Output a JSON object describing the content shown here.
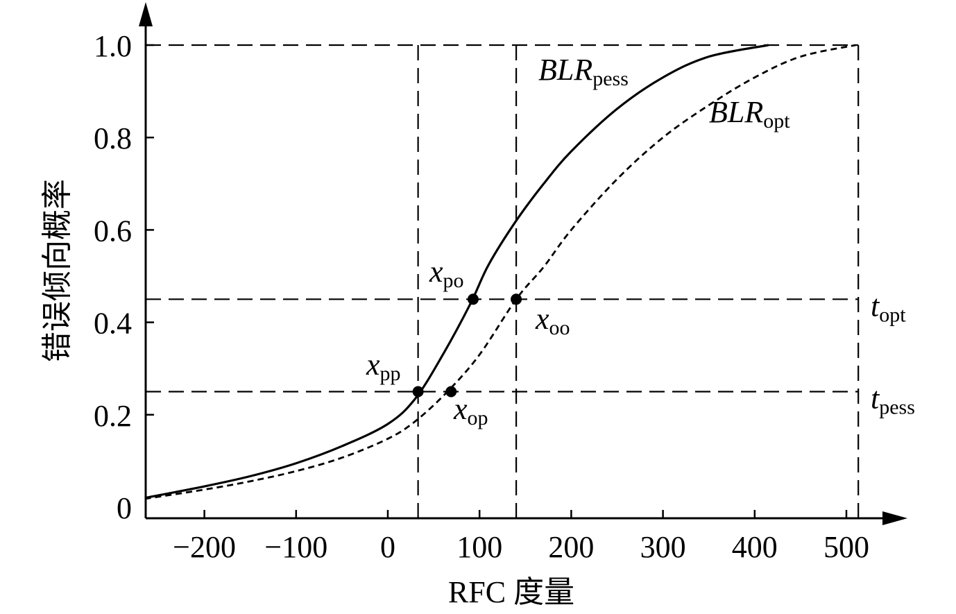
{
  "chart_data": {
    "type": "line",
    "xlabel": "RFC 度量",
    "ylabel": "错误倾向概率",
    "xlim": [
      -265,
      515
    ],
    "ylim": [
      0,
      1.0
    ],
    "x_ticks": [
      -200,
      -100,
      0,
      100,
      200,
      300,
      400,
      500
    ],
    "x_tick_labels": [
      "−200",
      "−100",
      "0",
      "100",
      "200",
      "300",
      "400",
      "500"
    ],
    "y_ticks": [
      0,
      0.2,
      0.4,
      0.6,
      0.8,
      1.0
    ],
    "y_tick_labels": [
      "0",
      "0.2",
      "0.4",
      "0.6",
      "0.8",
      "1.0"
    ],
    "grid": false,
    "series": [
      {
        "name": "BLR",
        "name_sub": "pess",
        "style": "solid",
        "color": "#000000",
        "x": [
          -265,
          -200,
          -150,
          -100,
          -50,
          0,
          30,
          60,
          90,
          110,
          140,
          170,
          200,
          250,
          300,
          350,
          415
        ],
        "y": [
          0.02,
          0.045,
          0.067,
          0.095,
          0.132,
          0.18,
          0.235,
          0.33,
          0.44,
          0.525,
          0.62,
          0.7,
          0.77,
          0.862,
          0.93,
          0.975,
          1.0
        ]
      },
      {
        "name": "BLR",
        "name_sub": "opt",
        "style": "dashed",
        "color": "#000000",
        "x": [
          -265,
          -200,
          -150,
          -100,
          -50,
          0,
          30,
          65,
          100,
          140,
          170,
          200,
          250,
          300,
          350,
          400,
          450,
          510
        ],
        "y": [
          0.018,
          0.038,
          0.056,
          0.078,
          0.107,
          0.148,
          0.186,
          0.25,
          0.33,
          0.45,
          0.52,
          0.6,
          0.71,
          0.8,
          0.87,
          0.93,
          0.975,
          1.0
        ]
      }
    ],
    "reference_lines": {
      "horizontal": [
        {
          "y": 1.0,
          "label": "",
          "label_sub": ""
        },
        {
          "y": 0.45,
          "label": "t",
          "label_sub": "opt"
        },
        {
          "y": 0.25,
          "label": "t",
          "label_sub": "pess"
        }
      ],
      "vertical": [
        33,
        140,
        513
      ]
    },
    "points": [
      {
        "label": "x",
        "label_sub": "pp",
        "x": 33,
        "y": 0.25
      },
      {
        "label": "x",
        "label_sub": "op",
        "x": 69,
        "y": 0.25
      },
      {
        "label": "x",
        "label_sub": "po",
        "x": 93,
        "y": 0.45
      },
      {
        "label": "x",
        "label_sub": "oo",
        "x": 140,
        "y": 0.45
      }
    ]
  }
}
